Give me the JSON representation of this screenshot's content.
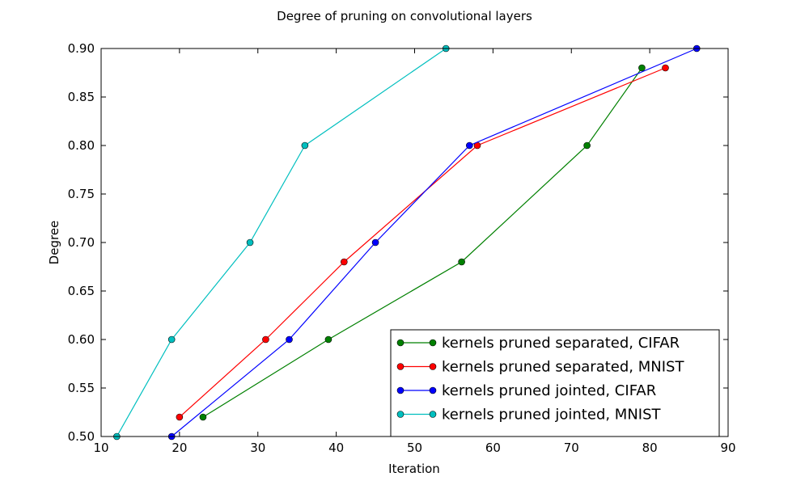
{
  "chart_data": {
    "type": "line",
    "title": "Degree of pruning on convolutional layers",
    "xlabel": "Iteration",
    "ylabel": "Degree",
    "xlim": [
      10,
      90
    ],
    "ylim": [
      0.5,
      0.9
    ],
    "x_ticks": [
      "10",
      "20",
      "30",
      "40",
      "50",
      "60",
      "70",
      "80",
      "90"
    ],
    "y_ticks": [
      "0.50",
      "0.55",
      "0.60",
      "0.65",
      "0.70",
      "0.75",
      "0.80",
      "0.85",
      "0.90"
    ],
    "grid": false,
    "legend_position": "lower-right",
    "series": [
      {
        "name": "kernels pruned separated, CIFAR",
        "color": "#008000",
        "x": [
          23,
          39,
          56,
          72,
          79
        ],
        "y": [
          0.52,
          0.6,
          0.68,
          0.8,
          0.88
        ]
      },
      {
        "name": "kernels pruned separated, MNIST",
        "color": "#ff0000",
        "x": [
          20,
          31,
          41,
          58,
          82
        ],
        "y": [
          0.52,
          0.6,
          0.68,
          0.8,
          0.88
        ]
      },
      {
        "name": "kernels pruned jointed, CIFAR",
        "color": "#0000ff",
        "x": [
          19,
          34,
          45,
          57,
          86
        ],
        "y": [
          0.5,
          0.6,
          0.7,
          0.8,
          0.9
        ]
      },
      {
        "name": "kernels pruned jointed, MNIST",
        "color": "#00bfbf",
        "x": [
          12,
          19,
          29,
          36,
          54
        ],
        "y": [
          0.5,
          0.6,
          0.7,
          0.8,
          0.9
        ]
      }
    ]
  }
}
